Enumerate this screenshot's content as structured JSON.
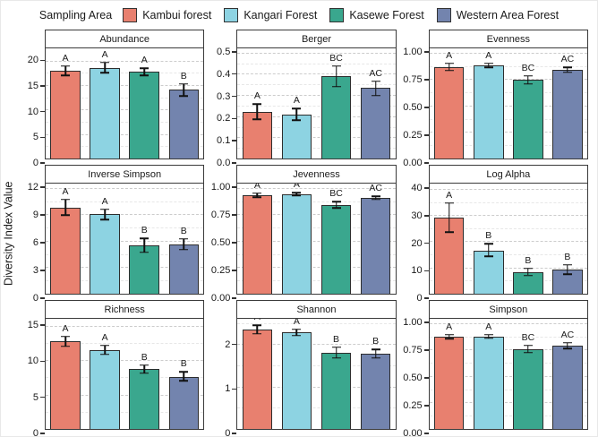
{
  "legend": {
    "title": "Sampling Area",
    "items": [
      {
        "label": "Kambui forest",
        "color": "#E8806F"
      },
      {
        "label": "Kangari Forest",
        "color": "#8DD3E2"
      },
      {
        "label": "Kasewe Forest",
        "color": "#3AA78E"
      },
      {
        "label": "Western Area Forest",
        "color": "#7384AE"
      }
    ]
  },
  "y_axis_label": "Diversity Index Value",
  "chart_data": {
    "type": "bar",
    "title": "",
    "xlabel": "",
    "ylabel": "Diversity Index Value",
    "legend_position": "top",
    "grid": "dashed horizontal major and minor gridlines",
    "layout": "3x3 facet grid, 4 grouped bars per facet with error bars and significance letters",
    "groups": [
      "Kambui forest",
      "Kangari Forest",
      "Kasewe Forest",
      "Western Area Forest"
    ],
    "group_colors": [
      "#E8806F",
      "#8DD3E2",
      "#3AA78E",
      "#7384AE"
    ],
    "facets": [
      {
        "title": "Abundance",
        "ylim": [
          0,
          22.5
        ],
        "ticks": [
          {
            "v": 0,
            "label": "0"
          },
          {
            "v": 5,
            "label": "5"
          },
          {
            "v": 10,
            "label": "10"
          },
          {
            "v": 15,
            "label": "15"
          },
          {
            "v": 20,
            "label": "20"
          }
        ],
        "values": [
          17.9,
          18.5,
          17.7,
          14.0
        ],
        "err_low": [
          17.0,
          17.5,
          17.0,
          12.8
        ],
        "err_high": [
          18.9,
          19.6,
          18.4,
          15.2
        ],
        "letters": [
          "A",
          "A",
          "A",
          "B"
        ]
      },
      {
        "title": "Berger",
        "ylim": [
          0,
          0.52
        ],
        "ticks": [
          {
            "v": 0,
            "label": "0.0"
          },
          {
            "v": 0.1,
            "label": "0.1"
          },
          {
            "v": 0.2,
            "label": "0.2"
          },
          {
            "v": 0.3,
            "label": "0.3"
          },
          {
            "v": 0.4,
            "label": "0.4"
          },
          {
            "v": 0.5,
            "label": "0.5"
          }
        ],
        "values": [
          0.222,
          0.209,
          0.39,
          0.332
        ],
        "err_low": [
          0.186,
          0.181,
          0.34,
          0.297
        ],
        "err_high": [
          0.257,
          0.235,
          0.437,
          0.365
        ],
        "letters": [
          "A",
          "A",
          "BC",
          "AC"
        ]
      },
      {
        "title": "Evenness",
        "ylim": [
          0,
          1.04
        ],
        "ticks": [
          {
            "v": 0,
            "label": "0.00"
          },
          {
            "v": 0.25,
            "label": "0.25"
          },
          {
            "v": 0.5,
            "label": "0.50"
          },
          {
            "v": 0.75,
            "label": "0.75"
          },
          {
            "v": 1,
            "label": "1.00"
          }
        ],
        "values": [
          0.862,
          0.88,
          0.745,
          0.838
        ],
        "err_low": [
          0.83,
          0.861,
          0.705,
          0.812
        ],
        "err_high": [
          0.9,
          0.897,
          0.782,
          0.862
        ],
        "letters": [
          "A",
          "A",
          "BC",
          "AC"
        ]
      },
      {
        "title": "Inverse Simpson",
        "ylim": [
          0,
          12.5
        ],
        "ticks": [
          {
            "v": 0,
            "label": "0"
          },
          {
            "v": 3,
            "label": "3"
          },
          {
            "v": 6,
            "label": "6"
          },
          {
            "v": 9,
            "label": "9"
          },
          {
            "v": 12,
            "label": "12"
          }
        ],
        "values": [
          9.8,
          9.0,
          5.5,
          5.6
        ],
        "err_low": [
          8.9,
          8.4,
          4.7,
          5.0
        ],
        "err_high": [
          10.7,
          9.6,
          6.3,
          6.2
        ],
        "letters": [
          "A",
          "A",
          "B",
          "B"
        ]
      },
      {
        "title": "Jevenness",
        "ylim": [
          0,
          1.04
        ],
        "ticks": [
          {
            "v": 0,
            "label": "0.00"
          },
          {
            "v": 0.25,
            "label": "0.25"
          },
          {
            "v": 0.5,
            "label": "0.50"
          },
          {
            "v": 0.75,
            "label": "0.75"
          },
          {
            "v": 1,
            "label": "1.00"
          }
        ],
        "values": [
          0.93,
          0.94,
          0.84,
          0.905
        ],
        "err_low": [
          0.912,
          0.927,
          0.81,
          0.888
        ],
        "err_high": [
          0.948,
          0.953,
          0.868,
          0.92
        ],
        "letters": [
          "A",
          "A",
          "BC",
          "AC"
        ]
      },
      {
        "title": "Log Alpha",
        "ylim": [
          0,
          42
        ],
        "ticks": [
          {
            "v": 0,
            "label": "0"
          },
          {
            "v": 10,
            "label": "10"
          },
          {
            "v": 20,
            "label": "20"
          },
          {
            "v": 30,
            "label": "30"
          },
          {
            "v": 40,
            "label": "40"
          }
        ],
        "values": [
          29.0,
          16.5,
          8.2,
          9.2
        ],
        "err_low": [
          23.5,
          14.2,
          7.0,
          7.4
        ],
        "err_high": [
          34.6,
          19.0,
          9.6,
          11.0
        ],
        "letters": [
          "A",
          "B",
          "B",
          "B"
        ]
      },
      {
        "title": "Richness",
        "ylim": [
          0,
          16
        ],
        "ticks": [
          {
            "v": 0,
            "label": "0"
          },
          {
            "v": 5,
            "label": "5"
          },
          {
            "v": 10,
            "label": "10"
          },
          {
            "v": 15,
            "label": "15"
          }
        ],
        "values": [
          12.7,
          11.4,
          8.7,
          7.6
        ],
        "err_low": [
          12.0,
          10.8,
          8.1,
          7.0
        ],
        "err_high": [
          13.4,
          12.1,
          9.3,
          8.3
        ],
        "letters": [
          "A",
          "A",
          "B",
          "B"
        ]
      },
      {
        "title": "Shannon",
        "ylim": [
          0,
          2.6
        ],
        "ticks": [
          {
            "v": 0,
            "label": "0"
          },
          {
            "v": 1,
            "label": "1"
          },
          {
            "v": 2,
            "label": "2"
          }
        ],
        "values": [
          2.35,
          2.28,
          1.8,
          1.78
        ],
        "err_low": [
          2.25,
          2.2,
          1.68,
          1.67
        ],
        "err_high": [
          2.45,
          2.35,
          1.93,
          1.88
        ],
        "letters": [
          "A",
          "A",
          "B",
          "B"
        ]
      },
      {
        "title": "Simpson",
        "ylim": [
          0,
          1.04
        ],
        "ticks": [
          {
            "v": 0,
            "label": "0.00"
          },
          {
            "v": 0.25,
            "label": "0.25"
          },
          {
            "v": 0.5,
            "label": "0.50"
          },
          {
            "v": 0.75,
            "label": "0.75"
          },
          {
            "v": 1,
            "label": "1.00"
          }
        ],
        "values": [
          0.87,
          0.875,
          0.755,
          0.785
        ],
        "err_low": [
          0.85,
          0.858,
          0.72,
          0.757
        ],
        "err_high": [
          0.89,
          0.891,
          0.79,
          0.812
        ],
        "letters": [
          "A",
          "A",
          "BC",
          "AC"
        ]
      }
    ]
  }
}
